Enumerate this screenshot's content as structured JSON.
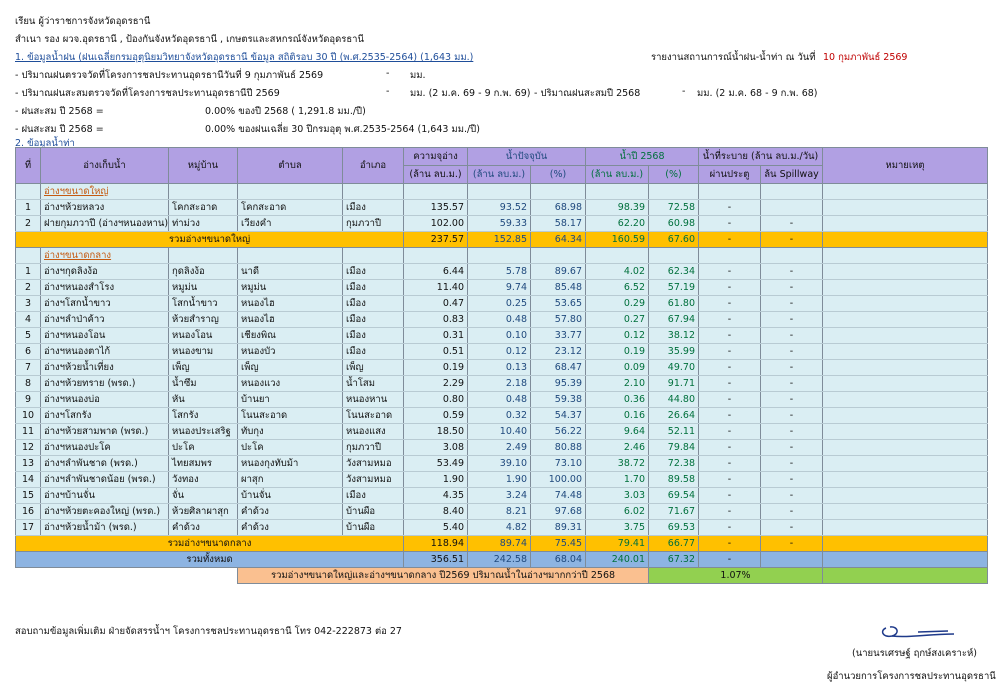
{
  "header": {
    "to": "เรียน  ผู้ว่าราชการจังหวัดอุดรธานี",
    "cc": "สำเนา  รอง ผวจ.อุดรธานี , ป้องกันจังหวัดอุดรธานี , เกษตรและสหกรณ์จังหวัดอุดรธานี",
    "report_title": "รายงานสถานการณ์น้ำฝน-น้ำท่า  ณ  วันที่",
    "report_date": "10  กุมภาพันธ์  2569"
  },
  "rain": {
    "heading": "1. ข้อมูลน้ำฝน (ฝนเฉลี่ยกรมอุตุนิยมวิทยาจังหวัดอุดรธานี ข้อมูล สถิติรอบ 30 ปี (พ.ศ.2535-2564)  (1,643 มม.)",
    "l1_label": "- ปริมาณฝนตรวจวัดที่โครงการชลประทานอุดรธานีวันที่  9  กุมภาพันธ์  2569",
    "l1_value": "-",
    "l1_unit": "มม.",
    "l2_label": "- ปริมาณฝนสะสมตรวจวัดที่โครงการชลประทานอุดรธานีปี 2569",
    "l2_value": "-",
    "l2_unit": "มม. (2 ม.ค. 69 - 9 ก.พ. 69)",
    "l2b_label": "- ปริมาณฝนสะสมปี 2568",
    "l2b_value": "-",
    "l2b_unit": "มม. (2 ม.ค. 68 - 9 ก.พ. 68)",
    "l3_label": "- ฝนสะสม ปี 2568 =",
    "l3_value": "0.00% ของปี 2568 ( 1,291.8 มม./ปี)",
    "l4_label": "- ฝนสะสม ปี 2568 =",
    "l4_value": "0.00% ของฝนเฉลี่ย 30 ปีกรมอุตุ พ.ศ.2535-2564 (1,643 มม./ปี)"
  },
  "runoff_heading": "2. ข้อมูลน้ำท่า",
  "table": {
    "h": {
      "no": "ที่",
      "name": "อ่างเก็บน้ำ",
      "village": "หมู่บ้าน",
      "subdistrict": "ตำบล",
      "district": "อำเภอ",
      "capacity": "ความจุอ่าง",
      "unit": "(ล้าน ลบ.ม.)",
      "current": "น้ำปัจจุบัน",
      "y2568": "น้ำปี 2568",
      "pct": "(%)",
      "release": "น้ำที่ระบาย (ล้าน ลบ.ม./วัน)",
      "gate": "ผ่านประตู",
      "spill": "ล้น Spillway",
      "remark": "หมายเหตุ"
    },
    "large_label": "อ่างฯขนาดใหญ่",
    "large": [
      [
        "1",
        "อ่างฯห้วยหลวง",
        "โคกสะอาด",
        "โคกสะอาด",
        "เมือง",
        "135.57",
        "93.52",
        "68.98",
        "98.39",
        "72.58",
        "-",
        ""
      ],
      [
        "2",
        "ฝายกุมภวาปี (อ่างฯหนองหาน)",
        "ท่าม่วง",
        "เวียงคำ",
        "กุมภวาปี",
        "102.00",
        "59.33",
        "58.17",
        "62.20",
        "60.98",
        "-",
        "-"
      ]
    ],
    "large_sum": [
      "รวมอ่างฯขนาดใหญ่",
      "237.57",
      "152.85",
      "64.34",
      "160.59",
      "67.60",
      "-",
      "-"
    ],
    "medium_label": "อ่างฯขนาดกลาง",
    "medium": [
      [
        "1",
        "อ่างฯกุดลิงง้อ",
        "กุดลิงง้อ",
        "นาดี",
        "เมือง",
        "6.44",
        "5.78",
        "89.67",
        "4.02",
        "62.34",
        "-",
        "-"
      ],
      [
        "2",
        "อ่างฯหนองสำโรง",
        "หมูม่น",
        "หมูม่น",
        "เมือง",
        "11.40",
        "9.74",
        "85.48",
        "6.52",
        "57.19",
        "-",
        "-"
      ],
      [
        "3",
        "อ่างฯโสกน้ำขาว",
        "โสกน้ำขาว",
        "หนองไฮ",
        "เมือง",
        "0.47",
        "0.25",
        "53.65",
        "0.29",
        "61.80",
        "-",
        "-"
      ],
      [
        "4",
        "อ่างฯลำป่าค้าว",
        "ห้วยสำราญ",
        "หนองไฮ",
        "เมือง",
        "0.83",
        "0.48",
        "57.80",
        "0.27",
        "67.94",
        "-",
        "-"
      ],
      [
        "5",
        "อ่างฯหนองโอน",
        "หนองโอน",
        "เชียงพิณ",
        "เมือง",
        "0.31",
        "0.10",
        "33.77",
        "0.12",
        "38.12",
        "-",
        "-"
      ],
      [
        "6",
        "อ่างฯหนองตาไก้",
        "หนองขาม",
        "หนองบัว",
        "เมือง",
        "0.51",
        "0.12",
        "23.12",
        "0.19",
        "35.99",
        "-",
        "-"
      ],
      [
        "7",
        "อ่างฯห้วยน้ำเที่ยง",
        "เพ็ญ",
        "เพ็ญ",
        "เพ็ญ",
        "0.19",
        "0.13",
        "68.47",
        "0.09",
        "49.70",
        "-",
        "-"
      ],
      [
        "8",
        "อ่างฯห้วยทราย (พรด.)",
        "น้ำซึม",
        "หนองแวง",
        "น้ำโสม",
        "2.29",
        "2.18",
        "95.39",
        "2.10",
        "91.71",
        "-",
        "-"
      ],
      [
        "9",
        "อ่างฯหนองบ่อ",
        "หัน",
        "บ้านยา",
        "หนองหาน",
        "0.80",
        "0.48",
        "59.38",
        "0.36",
        "44.80",
        "-",
        "-"
      ],
      [
        "10",
        "อ่างฯโสกรัง",
        "โสกรัง",
        "โนนสะอาด",
        "โนนสะอาด",
        "0.59",
        "0.32",
        "54.37",
        "0.16",
        "26.64",
        "-",
        "-"
      ],
      [
        "11",
        "อ่างฯห้วยสามพาด (พรด.)",
        "หนองประเสริฐ",
        "ทับกุง",
        "หนองแสง",
        "18.50",
        "10.40",
        "56.22",
        "9.64",
        "52.11",
        "-",
        "-"
      ],
      [
        "12",
        "อ่างฯหนองปะโค",
        "ปะโค",
        "ปะโค",
        "กุมภวาปี",
        "3.08",
        "2.49",
        "80.88",
        "2.46",
        "79.84",
        "-",
        "-"
      ],
      [
        "13",
        "อ่างฯลำพันชาด (พรด.)",
        "ไทยสมพร",
        "หนองกุงทับม้า",
        "วังสามหมอ",
        "53.49",
        "39.10",
        "73.10",
        "38.72",
        "72.38",
        "-",
        "-"
      ],
      [
        "14",
        "อ่างฯลำพันชาดน้อย (พรด.)",
        "วังทอง",
        "ผาสุก",
        "วังสามหมอ",
        "1.90",
        "1.90",
        "100.00",
        "1.70",
        "89.58",
        "-",
        "-"
      ],
      [
        "15",
        "อ่างฯบ้านจั่น",
        "จั่น",
        "บ้านจั่น",
        "เมือง",
        "4.35",
        "3.24",
        "74.48",
        "3.03",
        "69.54",
        "-",
        "-"
      ],
      [
        "16",
        "อ่างฯห้วยตะคองใหญ่ (พรด.)",
        "ห้วยศิลาผาสุก",
        "คำด้วง",
        "บ้านผือ",
        "8.40",
        "8.21",
        "97.68",
        "6.02",
        "71.67",
        "-",
        "-"
      ],
      [
        "17",
        "อ่างฯห้วยน้ำม้า (พรด.)",
        "คำด้วง",
        "คำด้วง",
        "บ้านผือ",
        "5.40",
        "4.82",
        "89.31",
        "3.75",
        "69.53",
        "-",
        "-"
      ]
    ],
    "medium_sum": [
      "รวมอ่างฯขนาดกลาง",
      "118.94",
      "89.74",
      "75.45",
      "79.41",
      "66.77",
      "-",
      "-"
    ],
    "total": [
      "รวมทั้งหมด",
      "356.51",
      "242.58",
      "68.04",
      "240.01",
      "67.32",
      "-",
      ""
    ],
    "compare_label": "รวมอ่างฯขนาดใหญ่และอ่างฯขนาดกลาง ปี2569 ปริมาณน้ำในอ่างฯมากกว่าปี 2568",
    "compare_value": "1.07%"
  },
  "footer": {
    "contact": "สอบถามข้อมูลเพิ่มเติม  ฝ่ายจัดสรรน้ำฯ โครงการชลประทานอุดรธานี โทร 042-222873 ต่อ 27",
    "signer": "(นายนรเศรษฐ์ ฤกษ์สงเคราะห์)",
    "position": "ผู้อำนวยการโครงการชลประทานอุดรธานี"
  },
  "colors": {
    "header": "#b1a0e3",
    "row": "#daeef3",
    "subtotal": "#ffc000",
    "total": "#8db4e2",
    "compare": "#fac090",
    "compare_value": "#92d050",
    "date": "#c00000"
  }
}
